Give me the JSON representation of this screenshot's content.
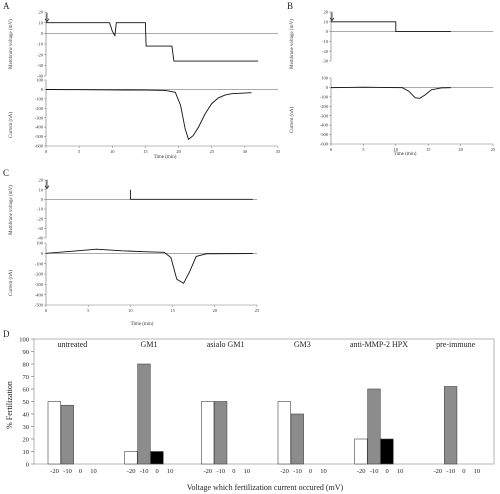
{
  "panels": {
    "A": {
      "label": "A",
      "voltage_ylabel": "Membrane voltage (mV)",
      "current_ylabel": "Current (nA)",
      "xlabel": "Time (min)",
      "xticks": [
        "0",
        "5",
        "10",
        "15",
        "20",
        "25",
        "30",
        "35"
      ],
      "xlim": [
        0,
        35
      ],
      "vticks": [
        "20",
        "10",
        "0",
        "-10",
        "-20",
        "-30",
        "-40"
      ],
      "vlim": [
        -40,
        20
      ],
      "cticks": [
        "100",
        "0",
        "-100",
        "-200",
        "-300",
        "-400",
        "-500",
        "-600"
      ],
      "clim": [
        -600,
        100
      ],
      "voltage_trace": [
        [
          0,
          10
        ],
        [
          9.6,
          10
        ],
        [
          10,
          2
        ],
        [
          10.4,
          -2
        ],
        [
          10.6,
          10
        ],
        [
          15,
          10
        ],
        [
          15.1,
          -12
        ],
        [
          19,
          -12
        ],
        [
          19.3,
          -26
        ],
        [
          32,
          -26
        ]
      ],
      "current_trace": [
        [
          0,
          -1
        ],
        [
          5,
          -3
        ],
        [
          10,
          -5
        ],
        [
          15,
          -7
        ],
        [
          18,
          -10
        ],
        [
          19.5,
          -30
        ],
        [
          20.3,
          -170
        ],
        [
          21,
          -420
        ],
        [
          21.5,
          -530
        ],
        [
          22.2,
          -490
        ],
        [
          23,
          -400
        ],
        [
          24,
          -260
        ],
        [
          25,
          -150
        ],
        [
          26,
          -90
        ],
        [
          27,
          -60
        ],
        [
          28,
          -45
        ],
        [
          31,
          -35
        ]
      ]
    },
    "B": {
      "label": "B",
      "voltage_ylabel": "Membrane voltage (mV)",
      "current_ylabel": "Current (nA)",
      "xlabel": "Time (min)",
      "xticks": [
        "0",
        "5",
        "10",
        "15",
        "20",
        "25"
      ],
      "xlim": [
        0,
        25
      ],
      "vticks": [
        "20",
        "10",
        "0",
        "-10",
        "-20",
        "-30"
      ],
      "vlim": [
        -30,
        20
      ],
      "cticks": [
        "100",
        "0",
        "-100",
        "-200",
        "-300",
        "-400",
        "-500",
        "-600"
      ],
      "clim": [
        -600,
        100
      ],
      "voltage_trace": [
        [
          0,
          10
        ],
        [
          10,
          10
        ],
        [
          10,
          0
        ],
        [
          18.5,
          0
        ]
      ],
      "current_trace": [
        [
          0,
          -3
        ],
        [
          5,
          2
        ],
        [
          9,
          -2
        ],
        [
          11,
          -3
        ],
        [
          12,
          -40
        ],
        [
          13,
          -110
        ],
        [
          13.7,
          -115
        ],
        [
          14.5,
          -80
        ],
        [
          15.5,
          -25
        ],
        [
          17,
          -5
        ],
        [
          18.5,
          -3
        ]
      ]
    },
    "C": {
      "label": "C",
      "voltage_ylabel": "Membrane voltage (mV)",
      "current_ylabel": "Current (nA)",
      "xlabel": "Time (min)",
      "xticks": [
        "0",
        "5",
        "10",
        "15",
        "20",
        "25"
      ],
      "xlim": [
        0,
        25
      ],
      "vticks": [
        "20",
        "10",
        "0",
        "-10",
        "-20",
        "-30",
        "-40"
      ],
      "vlim": [
        -40,
        20
      ],
      "cticks": [
        "100",
        "0",
        "-100",
        "-200",
        "-300",
        "-400",
        "-500"
      ],
      "clim": [
        -500,
        100
      ],
      "voltage_trace": [
        [
          10,
          10
        ],
        [
          10,
          0
        ],
        [
          24.5,
          0
        ]
      ],
      "current_trace": [
        [
          0,
          0
        ],
        [
          3,
          20
        ],
        [
          6,
          40
        ],
        [
          9,
          25
        ],
        [
          12,
          15
        ],
        [
          14,
          10
        ],
        [
          14.8,
          -40
        ],
        [
          15.5,
          -250
        ],
        [
          16.3,
          -290
        ],
        [
          17,
          -180
        ],
        [
          17.8,
          -30
        ],
        [
          19,
          -5
        ],
        [
          24.5,
          -3
        ]
      ]
    }
  },
  "chart_data": {
    "type": "bar",
    "label": "D",
    "ylabel": "% Fertilization",
    "xlabel": "Voltage which fertilization current occured (mV)",
    "ylim": [
      0,
      100
    ],
    "yticks": [
      "0",
      "10",
      "20",
      "30",
      "40",
      "50",
      "60",
      "70",
      "80",
      "90",
      "100"
    ],
    "categories": [
      "-20",
      "-10",
      "0",
      "10"
    ],
    "groups": [
      {
        "name": "untreated",
        "values": [
          50,
          47,
          0,
          0
        ]
      },
      {
        "name": "GM1",
        "values": [
          10,
          80,
          10,
          0
        ]
      },
      {
        "name": "asialo GM1",
        "values": [
          50,
          50,
          0,
          0
        ]
      },
      {
        "name": "GM3",
        "values": [
          50,
          40,
          0,
          0
        ]
      },
      {
        "name": "anti-MMP-2 HPX",
        "values": [
          20,
          60,
          20,
          0
        ]
      },
      {
        "name": "pre-immune",
        "values": [
          0,
          62,
          0,
          0
        ]
      }
    ],
    "category_fills": [
      "#ffffff",
      "#8c8c8c",
      "#000000",
      "#ffffff"
    ]
  }
}
